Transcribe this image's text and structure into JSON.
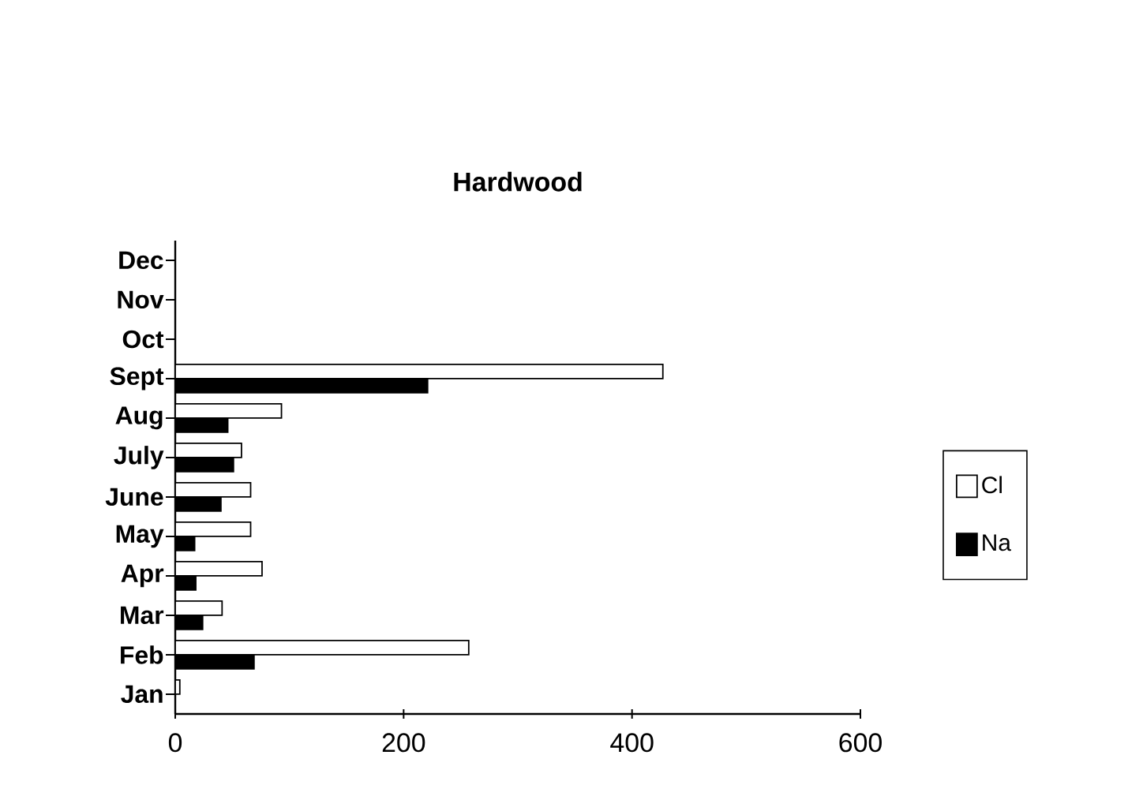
{
  "chart_data": {
    "type": "bar",
    "orientation": "horizontal",
    "title": "Hardwood",
    "categories": [
      "Dec",
      "Nov",
      "Oct",
      "Sept",
      "Aug",
      "July",
      "June",
      "May",
      "Apr",
      "Mar",
      "Feb",
      "Jan"
    ],
    "series": [
      {
        "name": "Cl",
        "color": "#ffffff",
        "values": [
          null,
          null,
          null,
          427,
          93,
          58,
          66,
          66,
          76,
          41,
          257,
          4
        ]
      },
      {
        "name": "Na",
        "color": "#000000",
        "values": [
          null,
          null,
          null,
          221,
          46,
          51,
          40,
          17,
          18,
          24,
          69,
          null
        ]
      }
    ],
    "xlim": [
      0,
      600
    ],
    "xticks": [
      0,
      200,
      400,
      600
    ],
    "legend": "right"
  }
}
